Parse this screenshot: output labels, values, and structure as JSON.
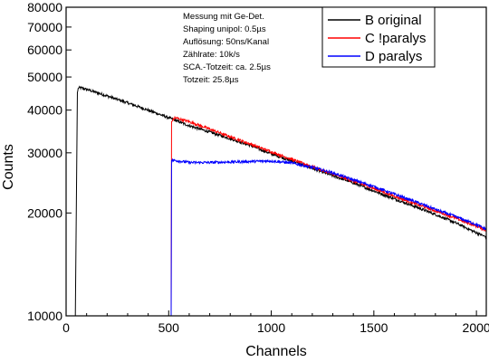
{
  "chart_data": {
    "type": "line",
    "xlabel": "Channels",
    "ylabel": "Counts",
    "xlim": [
      0,
      2048
    ],
    "ylim": [
      10000,
      80000
    ],
    "y_scale": "log",
    "x_ticks": [
      0,
      500,
      1000,
      1500,
      2000
    ],
    "x_tick_labels": [
      "0",
      "500",
      "1000",
      "1500",
      "2000"
    ],
    "y_ticks": [
      10000,
      20000,
      30000,
      40000,
      50000,
      60000,
      70000,
      80000
    ],
    "y_tick_labels": [
      "10000",
      "20000",
      "30000",
      "40000",
      "50000",
      "60000",
      "70000",
      "80000"
    ],
    "grid": false,
    "legend_position": "top-right",
    "annotations": [
      "Messung mit Ge-Det.",
      "Shaping unipol: 0.5µs",
      "Auflösung: 50ns/Kanal",
      "Zählrate:    10k/s",
      "SCA.-Totzeit: ca. 2.5µs",
      "Totzeit:        25.8µs"
    ],
    "series": [
      {
        "name": "B original",
        "color": "#000000",
        "x": [
          45,
          55,
          60,
          70,
          100,
          200,
          300,
          400,
          500,
          600,
          700,
          800,
          900,
          1000,
          1100,
          1200,
          1300,
          1400,
          1500,
          1600,
          1700,
          1800,
          1900,
          2000,
          2048
        ],
        "y": [
          10000,
          45000,
          46500,
          46500,
          46000,
          44000,
          42000,
          40000,
          38000,
          36000,
          34500,
          33000,
          31500,
          29800,
          28400,
          27000,
          25700,
          24500,
          23200,
          22000,
          20900,
          19800,
          18700,
          17500,
          17000
        ]
      },
      {
        "name": "C !paralys",
        "color": "#ff0000",
        "x": [
          512,
          514,
          530,
          600,
          700,
          800,
          900,
          1000,
          1100,
          1200,
          1300,
          1400,
          1500,
          1600,
          1700,
          1800,
          1900,
          2000,
          2048
        ],
        "y": [
          10000,
          37000,
          38000,
          37000,
          35200,
          33400,
          31800,
          30200,
          28700,
          27300,
          26000,
          24800,
          23600,
          22400,
          21300,
          20300,
          19300,
          18300,
          17800
        ]
      },
      {
        "name": "D paralys",
        "color": "#0000ff",
        "x": [
          512,
          514,
          530,
          600,
          700,
          800,
          900,
          1000,
          1100,
          1200,
          1300,
          1400,
          1500,
          1600,
          1700,
          1800,
          1900,
          2000,
          2048
        ],
        "y": [
          10000,
          28500,
          28500,
          28100,
          28100,
          28200,
          28300,
          28400,
          28000,
          27200,
          26200,
          25000,
          23900,
          22700,
          21600,
          20500,
          19500,
          18500,
          17900
        ]
      }
    ]
  }
}
